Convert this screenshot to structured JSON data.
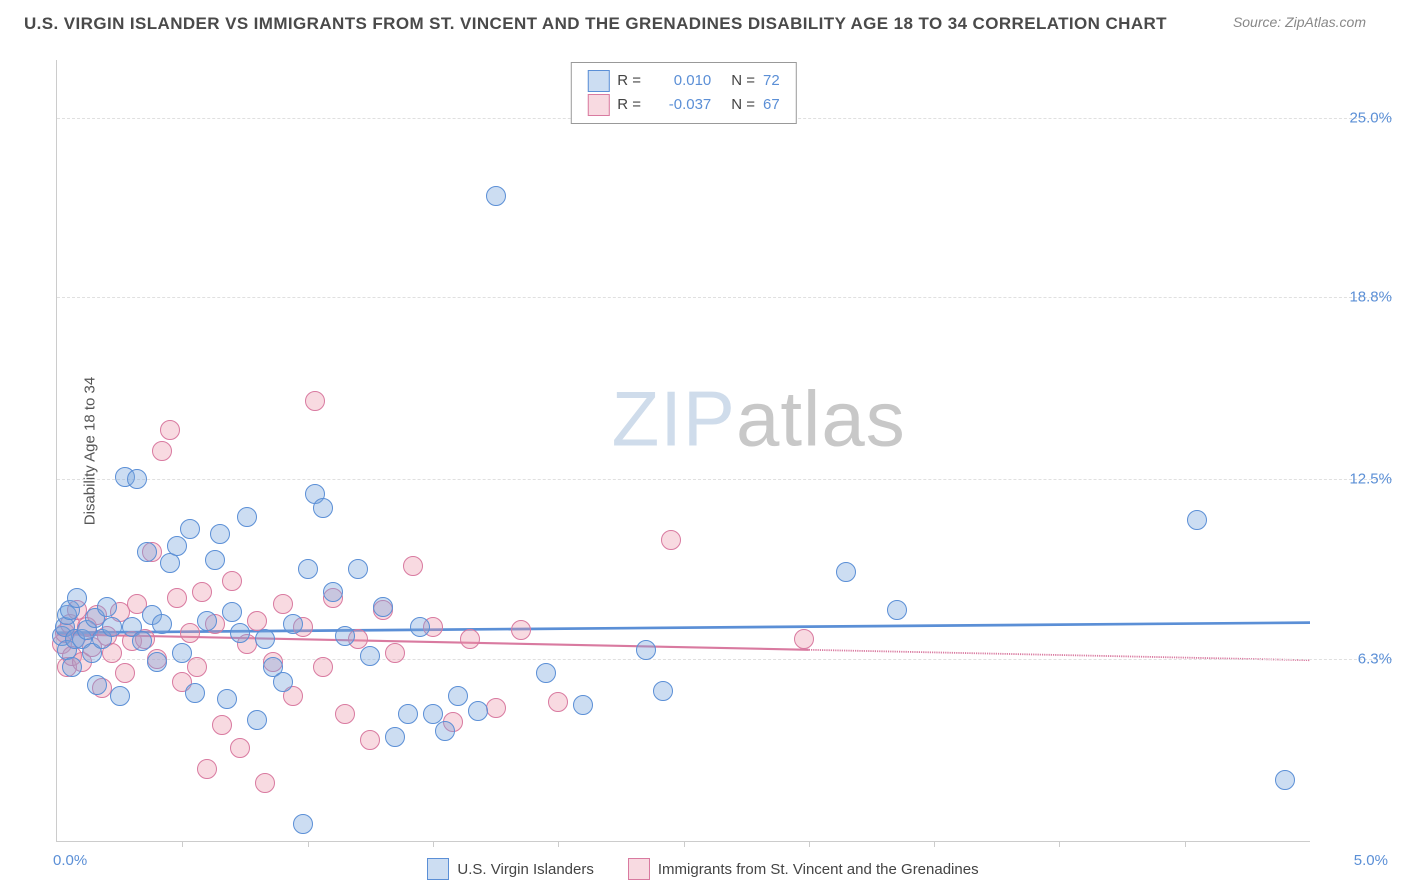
{
  "header": {
    "title": "U.S. VIRGIN ISLANDER VS IMMIGRANTS FROM ST. VINCENT AND THE GRENADINES DISABILITY AGE 18 TO 34 CORRELATION CHART",
    "source_prefix": "Source: ",
    "source_name": "ZipAtlas.com"
  },
  "axes": {
    "ylabel": "Disability Age 18 to 34",
    "xmin": 0.0,
    "xmax": 5.0,
    "ymin": 0.0,
    "ymax": 27.0,
    "yticks": [
      {
        "v": 6.3,
        "label": "6.3%"
      },
      {
        "v": 12.5,
        "label": "12.5%"
      },
      {
        "v": 18.8,
        "label": "18.8%"
      },
      {
        "v": 25.0,
        "label": "25.0%"
      }
    ],
    "xtick_label_left": "0.0%",
    "xtick_label_right": "5.0%",
    "xticks_minor": [
      0.5,
      1.0,
      1.5,
      2.0,
      2.5,
      3.0,
      3.5,
      4.0,
      4.5
    ]
  },
  "series": {
    "blue": {
      "label": "U.S. Virgin Islanders",
      "fill": "rgba(120,165,220,0.38)",
      "stroke": "#5b8fd6",
      "marker_r": 10,
      "R": "0.010",
      "N": "72",
      "trend": {
        "y_at_x0": 7.2,
        "y_at_x5": 7.55,
        "dash_from_x": 5.0
      },
      "pts": [
        [
          0.02,
          7.1
        ],
        [
          0.03,
          7.4
        ],
        [
          0.04,
          6.6
        ],
        [
          0.04,
          7.8
        ],
        [
          0.05,
          8.0
        ],
        [
          0.06,
          6.0
        ],
        [
          0.07,
          7.0
        ],
        [
          0.08,
          8.4
        ],
        [
          0.1,
          7.0
        ],
        [
          0.12,
          7.3
        ],
        [
          0.14,
          6.5
        ],
        [
          0.15,
          7.7
        ],
        [
          0.16,
          5.4
        ],
        [
          0.18,
          7.0
        ],
        [
          0.2,
          8.1
        ],
        [
          0.22,
          7.4
        ],
        [
          0.25,
          5.0
        ],
        [
          0.27,
          12.6
        ],
        [
          0.3,
          7.4
        ],
        [
          0.32,
          12.5
        ],
        [
          0.34,
          6.9
        ],
        [
          0.36,
          10.0
        ],
        [
          0.38,
          7.8
        ],
        [
          0.4,
          6.2
        ],
        [
          0.42,
          7.5
        ],
        [
          0.45,
          9.6
        ],
        [
          0.48,
          10.2
        ],
        [
          0.5,
          6.5
        ],
        [
          0.53,
          10.8
        ],
        [
          0.55,
          5.1
        ],
        [
          0.6,
          7.6
        ],
        [
          0.63,
          9.7
        ],
        [
          0.65,
          10.6
        ],
        [
          0.68,
          4.9
        ],
        [
          0.7,
          7.9
        ],
        [
          0.73,
          7.2
        ],
        [
          0.76,
          11.2
        ],
        [
          0.8,
          4.2
        ],
        [
          0.83,
          7.0
        ],
        [
          0.86,
          6.0
        ],
        [
          0.9,
          5.5
        ],
        [
          0.94,
          7.5
        ],
        [
          0.98,
          0.6
        ],
        [
          1.0,
          9.4
        ],
        [
          1.03,
          12.0
        ],
        [
          1.06,
          11.5
        ],
        [
          1.1,
          8.6
        ],
        [
          1.15,
          7.1
        ],
        [
          1.2,
          9.4
        ],
        [
          1.25,
          6.4
        ],
        [
          1.3,
          8.1
        ],
        [
          1.35,
          3.6
        ],
        [
          1.4,
          4.4
        ],
        [
          1.45,
          7.4
        ],
        [
          1.5,
          4.4
        ],
        [
          1.55,
          3.8
        ],
        [
          1.6,
          5.0
        ],
        [
          1.68,
          4.5
        ],
        [
          1.75,
          22.3
        ],
        [
          1.95,
          5.8
        ],
        [
          2.1,
          4.7
        ],
        [
          2.35,
          6.6
        ],
        [
          2.42,
          5.2
        ],
        [
          3.15,
          9.3
        ],
        [
          3.35,
          8.0
        ],
        [
          4.55,
          11.1
        ],
        [
          4.9,
          2.1
        ]
      ]
    },
    "pink": {
      "label": "Immigrants from St. Vincent and the Grenadines",
      "fill": "rgba(235,150,170,0.35)",
      "stroke": "#d97aa0",
      "marker_r": 10,
      "R": "-0.037",
      "N": "67",
      "trend": {
        "y_at_x0": 7.15,
        "y_at_x5": 6.25,
        "dash_from_x": 3.0
      },
      "pts": [
        [
          0.02,
          6.8
        ],
        [
          0.03,
          7.2
        ],
        [
          0.04,
          6.0
        ],
        [
          0.05,
          7.5
        ],
        [
          0.06,
          6.4
        ],
        [
          0.07,
          7.0
        ],
        [
          0.08,
          8.0
        ],
        [
          0.1,
          6.2
        ],
        [
          0.12,
          7.4
        ],
        [
          0.14,
          6.7
        ],
        [
          0.16,
          7.8
        ],
        [
          0.18,
          5.3
        ],
        [
          0.2,
          7.1
        ],
        [
          0.22,
          6.5
        ],
        [
          0.25,
          7.9
        ],
        [
          0.27,
          5.8
        ],
        [
          0.3,
          6.9
        ],
        [
          0.32,
          8.2
        ],
        [
          0.35,
          7.0
        ],
        [
          0.38,
          10.0
        ],
        [
          0.4,
          6.3
        ],
        [
          0.42,
          13.5
        ],
        [
          0.45,
          14.2
        ],
        [
          0.48,
          8.4
        ],
        [
          0.5,
          5.5
        ],
        [
          0.53,
          7.2
        ],
        [
          0.56,
          6.0
        ],
        [
          0.58,
          8.6
        ],
        [
          0.6,
          2.5
        ],
        [
          0.63,
          7.5
        ],
        [
          0.66,
          4.0
        ],
        [
          0.7,
          9.0
        ],
        [
          0.73,
          3.2
        ],
        [
          0.76,
          6.8
        ],
        [
          0.8,
          7.6
        ],
        [
          0.83,
          2.0
        ],
        [
          0.86,
          6.2
        ],
        [
          0.9,
          8.2
        ],
        [
          0.94,
          5.0
        ],
        [
          0.98,
          7.4
        ],
        [
          1.03,
          15.2
        ],
        [
          1.06,
          6.0
        ],
        [
          1.1,
          8.4
        ],
        [
          1.15,
          4.4
        ],
        [
          1.2,
          7.0
        ],
        [
          1.25,
          3.5
        ],
        [
          1.3,
          8.0
        ],
        [
          1.35,
          6.5
        ],
        [
          1.42,
          9.5
        ],
        [
          1.5,
          7.4
        ],
        [
          1.58,
          4.1
        ],
        [
          1.65,
          7.0
        ],
        [
          1.75,
          4.6
        ],
        [
          1.85,
          7.3
        ],
        [
          2.0,
          4.8
        ],
        [
          2.45,
          10.4
        ],
        [
          2.98,
          7.0
        ]
      ]
    }
  },
  "legend_labels": {
    "R": "R =",
    "N": "N ="
  },
  "watermark": {
    "a": "ZIP",
    "b": "atlas"
  },
  "colors": {
    "tick_text": "#5b8fd6",
    "grid": "#e0e0e0",
    "axis": "#cccccc"
  }
}
